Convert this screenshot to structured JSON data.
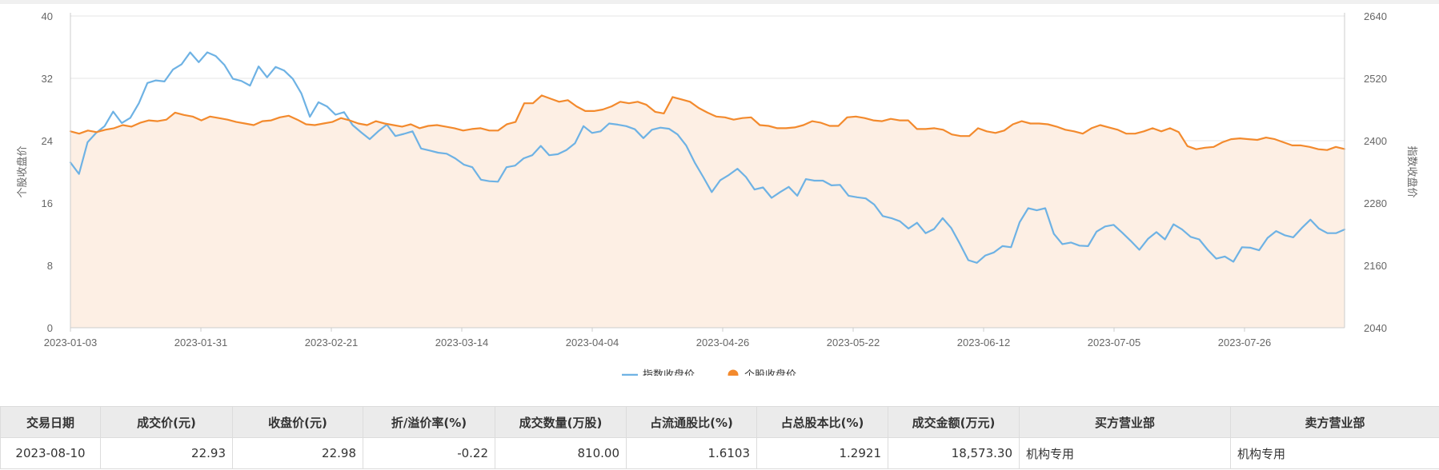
{
  "chart_data": {
    "type": "line",
    "title": "",
    "y_left": {
      "label": "个股收盘价",
      "min": 0,
      "max": 40,
      "ticks": [
        "0",
        "8",
        "16",
        "24",
        "32",
        "40"
      ]
    },
    "y_right": {
      "label": "指数收盘价",
      "min": 2040,
      "max": 2640,
      "ticks": [
        "2040",
        "2160",
        "2280",
        "2400",
        "2520",
        "2640"
      ]
    },
    "x_ticks": [
      "2023-01-03",
      "2023-01-31",
      "2023-02-21",
      "2023-03-14",
      "2023-04-04",
      "2023-04-26",
      "2023-05-22",
      "2023-06-12",
      "2023-07-05",
      "2023-07-26"
    ],
    "grid": true,
    "legend": {
      "placement": "bottom-center"
    },
    "series": [
      {
        "name": "指数收盘价",
        "axis": "right",
        "color": "#6eb2e4",
        "area": false,
        "values": [
          2358,
          2336,
          2397,
          2415,
          2428,
          2456,
          2434,
          2444,
          2472,
          2511,
          2516,
          2514,
          2537,
          2547,
          2570,
          2551,
          2570,
          2563,
          2546,
          2519,
          2515,
          2506,
          2543,
          2522,
          2542,
          2535,
          2519,
          2491,
          2446,
          2474,
          2466,
          2450,
          2455,
          2430,
          2416,
          2403,
          2418,
          2431,
          2409,
          2413,
          2418,
          2385,
          2381,
          2377,
          2375,
          2366,
          2354,
          2349,
          2325,
          2322,
          2321,
          2349,
          2352,
          2366,
          2372,
          2390,
          2372,
          2374,
          2382,
          2395,
          2428,
          2415,
          2418,
          2433,
          2431,
          2428,
          2422,
          2405,
          2421,
          2425,
          2423,
          2412,
          2391,
          2358,
          2330,
          2301,
          2324,
          2334,
          2346,
          2330,
          2306,
          2310,
          2290,
          2301,
          2311,
          2294,
          2326,
          2323,
          2323,
          2314,
          2315,
          2294,
          2291,
          2289,
          2277,
          2255,
          2251,
          2245,
          2231,
          2242,
          2222,
          2230,
          2251,
          2232,
          2202,
          2170,
          2165,
          2179,
          2185,
          2197,
          2195,
          2243,
          2270,
          2266,
          2270,
          2221,
          2201,
          2204,
          2198,
          2197,
          2225,
          2235,
          2238,
          2223,
          2207,
          2190,
          2211,
          2224,
          2210,
          2239,
          2229,
          2215,
          2210,
          2190,
          2173,
          2177,
          2167,
          2195,
          2194,
          2189,
          2213,
          2226,
          2218,
          2214,
          2232,
          2248,
          2231,
          2222,
          2222,
          2229
        ]
      },
      {
        "name": "个股收盘价",
        "axis": "left",
        "color": "#f38a2d",
        "area": true,
        "values": [
          25.2,
          24.9,
          25.3,
          25.1,
          25.4,
          25.6,
          26.0,
          25.8,
          26.3,
          26.6,
          26.5,
          26.7,
          27.6,
          27.3,
          27.1,
          26.6,
          27.1,
          26.9,
          26.7,
          26.4,
          26.2,
          26.0,
          26.5,
          26.6,
          27.0,
          27.2,
          26.7,
          26.1,
          26.0,
          26.2,
          26.4,
          26.9,
          26.6,
          26.2,
          26.0,
          26.5,
          26.2,
          26.0,
          25.8,
          26.1,
          25.6,
          25.9,
          26.0,
          25.8,
          25.6,
          25.3,
          25.5,
          25.6,
          25.3,
          25.3,
          26.1,
          26.4,
          28.8,
          28.8,
          29.8,
          29.4,
          29.0,
          29.2,
          28.4,
          27.8,
          27.8,
          28.0,
          28.4,
          29.0,
          28.8,
          29.0,
          28.6,
          27.7,
          27.5,
          29.6,
          29.3,
          29.0,
          28.2,
          27.6,
          27.1,
          27.0,
          26.7,
          26.9,
          27.0,
          26.0,
          25.9,
          25.6,
          25.6,
          25.7,
          26.0,
          26.5,
          26.3,
          25.9,
          25.9,
          27.0,
          27.1,
          26.9,
          26.6,
          26.5,
          26.8,
          26.6,
          26.6,
          25.5,
          25.5,
          25.6,
          25.4,
          24.8,
          24.6,
          24.6,
          25.6,
          25.2,
          25.0,
          25.3,
          26.1,
          26.5,
          26.2,
          26.2,
          26.1,
          25.8,
          25.4,
          25.2,
          24.9,
          25.6,
          26.0,
          25.7,
          25.4,
          24.9,
          24.9,
          25.2,
          25.6,
          25.2,
          25.6,
          25.1,
          23.3,
          22.9,
          23.1,
          23.2,
          23.8,
          24.2,
          24.3,
          24.2,
          24.1,
          24.4,
          24.2,
          23.8,
          23.4,
          23.4,
          23.2,
          22.9,
          22.8,
          23.2,
          22.93
        ]
      }
    ]
  },
  "table": {
    "headers": [
      "交易日期",
      "成交价(元)",
      "收盘价(元)",
      "折/溢价率(%)",
      "成交数量(万股)",
      "占流通股比(%)",
      "占总股本比(%)",
      "成交金额(万元)",
      "买方营业部",
      "卖方营业部"
    ],
    "rows": [
      [
        "2023-08-10",
        "22.93",
        "22.98",
        "-0.22",
        "810.00",
        "1.6103",
        "1.2921",
        "18,573.30",
        "机构专用",
        "机构专用"
      ]
    ]
  },
  "colors": {
    "grid": "#e6e6e6",
    "axis": "#cccccc",
    "area_fill": "#fdefe4"
  }
}
